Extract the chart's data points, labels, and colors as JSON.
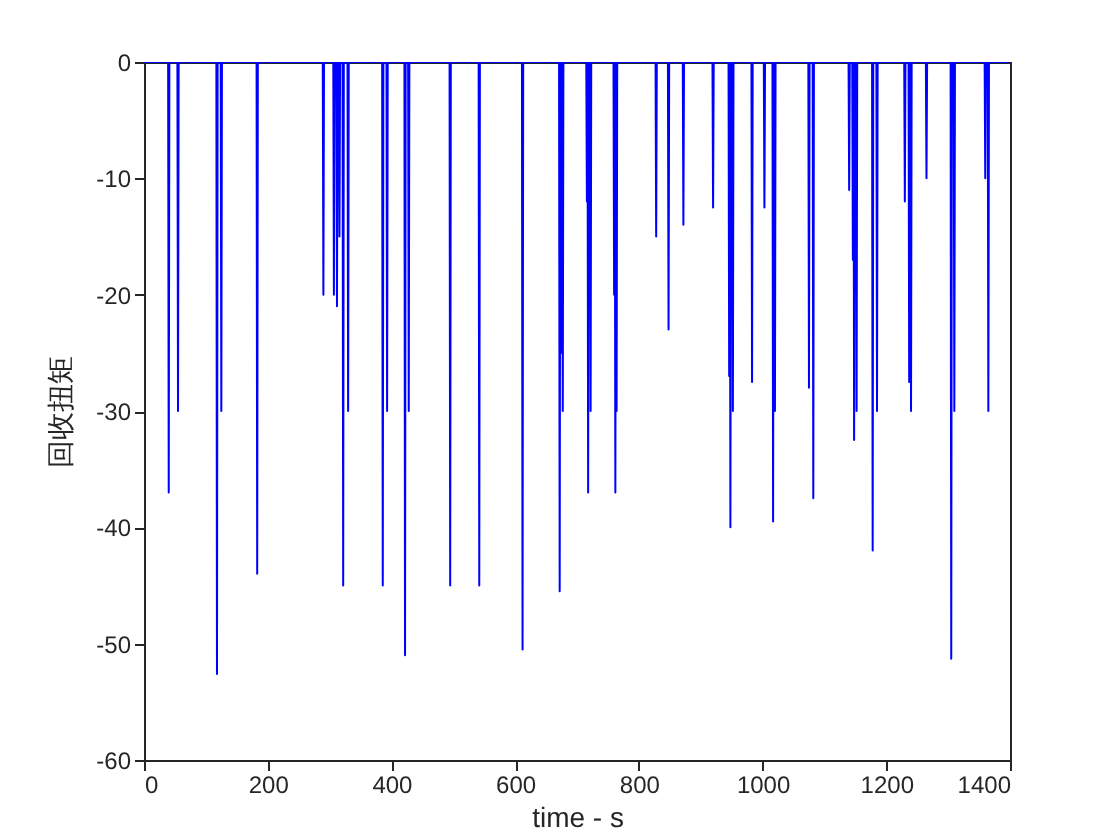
{
  "chart_data": {
    "type": "line",
    "xlabel": "time - s",
    "ylabel": "回收扭矩",
    "xlim": [
      0,
      1400
    ],
    "xticks": [
      0,
      200,
      400,
      600,
      800,
      1000,
      1200,
      1400
    ],
    "ylim": [
      -60,
      0
    ],
    "yticks": [
      -60,
      -50,
      -40,
      -30,
      -20,
      -10,
      0
    ],
    "grid": false,
    "marker": "none",
    "line_style": "solid",
    "series": [
      {
        "color": "#0000ff",
        "x": [
          0,
          39,
          40,
          41,
          54,
          55,
          56,
          117,
          118,
          119,
          124,
          125,
          126,
          182,
          183,
          184,
          289,
          290,
          291,
          306,
          307,
          308,
          311,
          312,
          313,
          315,
          316,
          317,
          321,
          322,
          323,
          329,
          330,
          331,
          385,
          386,
          387,
          392,
          393,
          394,
          421,
          422,
          423,
          427,
          428,
          429,
          494,
          495,
          496,
          541,
          542,
          543,
          611,
          612,
          613,
          671,
          672,
          673,
          675,
          676,
          677,
          678,
          715,
          716,
          717,
          718,
          719,
          721,
          722,
          723,
          759,
          760,
          761,
          762,
          763,
          764,
          765,
          827,
          828,
          829,
          847,
          848,
          849,
          871,
          872,
          873,
          919,
          920,
          921,
          945,
          946,
          947,
          948,
          949,
          951,
          952,
          953,
          982,
          983,
          984,
          1002,
          1003,
          1004,
          1016,
          1017,
          1018,
          1019,
          1020,
          1021,
          1074,
          1075,
          1076,
          1081,
          1082,
          1083,
          1139,
          1140,
          1141,
          1145,
          1146,
          1147,
          1148,
          1149,
          1151,
          1152,
          1153,
          1177,
          1178,
          1179,
          1184,
          1185,
          1186,
          1229,
          1230,
          1231,
          1236,
          1237,
          1238,
          1239,
          1240,
          1241,
          1264,
          1265,
          1266,
          1304,
          1305,
          1306,
          1309,
          1310,
          1311,
          1359,
          1360,
          1361,
          1364,
          1365,
          1366,
          1400
        ],
        "values": [
          0,
          0,
          -37,
          0,
          0,
          -30,
          0,
          0,
          -52.6,
          0,
          0,
          -30,
          0,
          0,
          -44,
          0,
          0,
          -20,
          0,
          0,
          -20,
          0,
          0,
          -21,
          0,
          0,
          -15,
          0,
          0,
          -45,
          0,
          0,
          -30,
          0,
          0,
          -45,
          0,
          0,
          -30,
          0,
          0,
          -51,
          0,
          0,
          -30,
          0,
          0,
          -45,
          0,
          0,
          -45,
          0,
          0,
          -50.5,
          0,
          0,
          -45.5,
          0,
          -25,
          0,
          -30,
          0,
          0,
          -12,
          0,
          -37,
          0,
          0,
          -30,
          0,
          0,
          -20,
          0,
          -37,
          0,
          -30,
          0,
          0,
          -15,
          0,
          0,
          -23,
          0,
          0,
          -14,
          0,
          0,
          -12.5,
          0,
          0,
          -27,
          0,
          -40,
          0,
          0,
          -30,
          0,
          0,
          -27.5,
          0,
          0,
          -12.5,
          0,
          0,
          -39.5,
          0,
          0,
          -30,
          0,
          0,
          -28,
          0,
          0,
          -37.5,
          0,
          0,
          -11,
          0,
          0,
          -17,
          0,
          -32.5,
          0,
          0,
          -30,
          0,
          0,
          -42,
          0,
          0,
          -30,
          0,
          0,
          -12,
          0,
          0,
          -27.5,
          0,
          0,
          -30,
          0,
          0,
          -10,
          0,
          0,
          -51.3,
          0,
          0,
          -30,
          0,
          0,
          -10,
          0,
          0,
          -30,
          0,
          0
        ]
      }
    ]
  }
}
